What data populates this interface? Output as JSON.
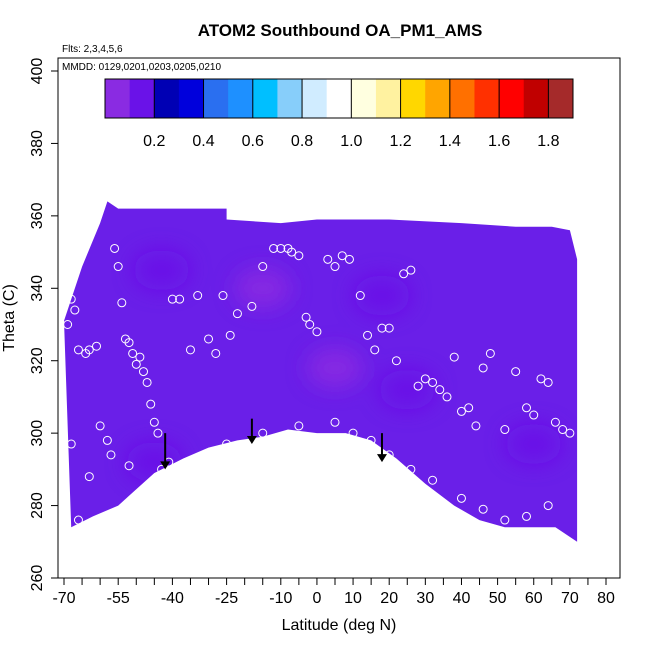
{
  "chart_data": {
    "type": "heatmap",
    "title": "ATOM2 Southbound OA_PM1_AMS",
    "flights_note": "Flts: 2,3,4,5,6",
    "dates_note": "MMDD: 0129,0201,0203,0205,0210",
    "xlabel": "Latitude (deg N)",
    "ylabel": "Theta (C)",
    "xlim": [
      -70,
      80
    ],
    "ylim": [
      260,
      400
    ],
    "x_ticks": [
      -70,
      -55,
      -40,
      -25,
      -10,
      0,
      10,
      20,
      30,
      40,
      50,
      60,
      70,
      80
    ],
    "x_tick_labels": [
      "-70",
      "-55",
      "-40",
      "-25",
      "-10",
      "0",
      "10",
      "20",
      "30",
      "40",
      "50",
      "60",
      "70",
      "80"
    ],
    "x_minor_ticks": [
      -65,
      -60,
      -50,
      -45,
      -35,
      -30,
      -20,
      -15,
      -5,
      5,
      15,
      25,
      35,
      45,
      55,
      65,
      75
    ],
    "y_ticks": [
      260,
      280,
      300,
      320,
      340,
      360,
      380,
      400
    ],
    "y_tick_labels": [
      "260",
      "280",
      "300",
      "320",
      "340",
      "360",
      "380",
      "400"
    ],
    "colorbar": {
      "range": [
        0,
        1.9
      ],
      "ticks": [
        0.2,
        0.4,
        0.6,
        0.8,
        1.0,
        1.2,
        1.4,
        1.6,
        1.8
      ],
      "tick_labels": [
        "0.2",
        "0.4",
        "0.6",
        "0.8",
        "1.0",
        "1.2",
        "1.4",
        "1.6",
        "1.8"
      ],
      "colors": [
        "#8a2be2",
        "#6a12e8",
        "#0000b4",
        "#0000dc",
        "#2a6ff0",
        "#1e90ff",
        "#00bfff",
        "#87cefa",
        "#d0ecff",
        "#ffffff",
        "#ffffe0",
        "#fff2a0",
        "#ffd700",
        "#ffa500",
        "#ff7000",
        "#ff3000",
        "#ff0000",
        "#c00000",
        "#a52a2a"
      ]
    },
    "region_top": [
      [
        -70,
        331
      ],
      [
        -65,
        346
      ],
      [
        -60,
        358
      ],
      [
        -58,
        364
      ],
      [
        -55,
        362
      ],
      [
        -37,
        362
      ],
      [
        -25,
        362
      ],
      [
        -25,
        359
      ],
      [
        -10,
        358
      ],
      [
        0,
        359
      ],
      [
        20,
        359
      ],
      [
        40,
        358
      ],
      [
        55,
        357
      ],
      [
        65,
        357
      ],
      [
        70,
        356
      ],
      [
        72,
        348
      ]
    ],
    "region_bottom": [
      [
        72,
        270
      ],
      [
        66,
        274
      ],
      [
        52,
        274
      ],
      [
        45,
        276
      ],
      [
        38,
        280
      ],
      [
        30,
        286
      ],
      [
        22,
        293
      ],
      [
        15,
        298
      ],
      [
        8,
        300
      ],
      [
        0,
        300
      ],
      [
        -8,
        301
      ],
      [
        -15,
        299
      ],
      [
        -22,
        298
      ],
      [
        -30,
        296
      ],
      [
        -37,
        293
      ],
      [
        -45,
        289
      ],
      [
        -55,
        280
      ],
      [
        -62,
        277
      ],
      [
        -68,
        274
      ]
    ],
    "field_patches": [
      {
        "lat": -45,
        "theta": 292,
        "value": 0.18
      },
      {
        "lat": -43,
        "theta": 345,
        "value": 0.14
      },
      {
        "lat": 25,
        "theta": 312,
        "value": 0.12
      },
      {
        "lat": 60,
        "theta": 297,
        "value": 0.12
      },
      {
        "lat": 18,
        "theta": 338,
        "value": 0.14
      },
      {
        "lat": -15,
        "theta": 340,
        "value": 0.05
      },
      {
        "lat": 5,
        "theta": 318,
        "value": 0.07
      }
    ],
    "obs_points": [
      [
        -69,
        330
      ],
      [
        -68,
        337
      ],
      [
        -67,
        334
      ],
      [
        -66,
        323
      ],
      [
        -64,
        322
      ],
      [
        -63,
        323
      ],
      [
        -61,
        324
      ],
      [
        -56,
        351
      ],
      [
        -55,
        346
      ],
      [
        -54,
        336
      ],
      [
        -53,
        326
      ],
      [
        -52,
        325
      ],
      [
        -51,
        322
      ],
      [
        -50,
        319
      ],
      [
        -49,
        321
      ],
      [
        -48,
        317
      ],
      [
        -47,
        314
      ],
      [
        -46,
        308
      ],
      [
        -45,
        303
      ],
      [
        -44,
        300
      ],
      [
        -43,
        290
      ],
      [
        -42,
        288
      ],
      [
        -41,
        292
      ],
      [
        -46,
        281
      ],
      [
        -45,
        284
      ],
      [
        -52,
        291
      ],
      [
        -40,
        337
      ],
      [
        -38,
        337
      ],
      [
        -35,
        323
      ],
      [
        -33,
        338
      ],
      [
        -30,
        326
      ],
      [
        -28,
        322
      ],
      [
        -26,
        338
      ],
      [
        -24,
        327
      ],
      [
        -22,
        333
      ],
      [
        -18,
        335
      ],
      [
        -15,
        346
      ],
      [
        -12,
        351
      ],
      [
        -10,
        351
      ],
      [
        -8,
        351
      ],
      [
        -7,
        350
      ],
      [
        -5,
        349
      ],
      [
        -3,
        332
      ],
      [
        -2,
        330
      ],
      [
        0,
        328
      ],
      [
        3,
        348
      ],
      [
        5,
        346
      ],
      [
        7,
        349
      ],
      [
        9,
        348
      ],
      [
        12,
        338
      ],
      [
        14,
        327
      ],
      [
        16,
        323
      ],
      [
        18,
        329
      ],
      [
        20,
        329
      ],
      [
        22,
        320
      ],
      [
        24,
        344
      ],
      [
        26,
        345
      ],
      [
        28,
        313
      ],
      [
        30,
        315
      ],
      [
        32,
        314
      ],
      [
        34,
        312
      ],
      [
        36,
        310
      ],
      [
        38,
        321
      ],
      [
        40,
        306
      ],
      [
        42,
        307
      ],
      [
        44,
        302
      ],
      [
        46,
        318
      ],
      [
        48,
        322
      ],
      [
        52,
        301
      ],
      [
        55,
        317
      ],
      [
        58,
        307
      ],
      [
        60,
        305
      ],
      [
        62,
        315
      ],
      [
        64,
        314
      ],
      [
        66,
        303
      ],
      [
        68,
        301
      ],
      [
        70,
        300
      ],
      [
        -36,
        282
      ],
      [
        -32,
        284
      ],
      [
        -25,
        297
      ],
      [
        -20,
        296
      ],
      [
        -15,
        300
      ],
      [
        -5,
        302
      ],
      [
        5,
        303
      ],
      [
        10,
        300
      ],
      [
        15,
        298
      ],
      [
        20,
        294
      ],
      [
        26,
        290
      ],
      [
        32,
        287
      ],
      [
        40,
        282
      ],
      [
        46,
        279
      ],
      [
        52,
        276
      ],
      [
        58,
        277
      ],
      [
        64,
        280
      ],
      [
        -60,
        302
      ],
      [
        -58,
        298
      ],
      [
        -57,
        294
      ],
      [
        -63,
        288
      ],
      [
        -66,
        276
      ],
      [
        -68,
        297
      ]
    ],
    "arrows": [
      {
        "lat": -42,
        "theta_from": 300,
        "theta_to": 290
      },
      {
        "lat": -18,
        "theta_from": 304,
        "theta_to": 297
      },
      {
        "lat": 18,
        "theta_from": 300,
        "theta_to": 292
      }
    ]
  }
}
